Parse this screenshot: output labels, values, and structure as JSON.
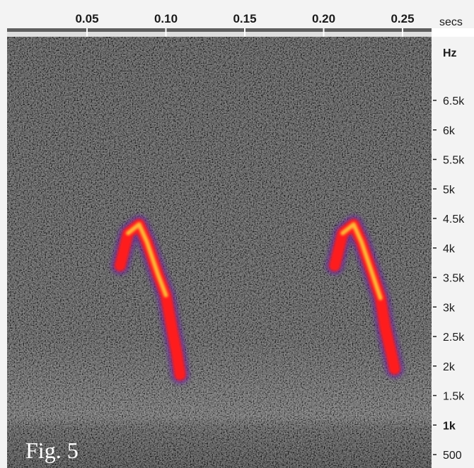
{
  "chart_data": {
    "type": "heatmap",
    "title": "",
    "figure_label": "Fig. 5",
    "x_axis": {
      "unit_label": "secs",
      "ticks": [
        {
          "value": 0.05,
          "label": "0.05"
        },
        {
          "value": 0.1,
          "label": "0.10"
        },
        {
          "value": 0.15,
          "label": "0.15"
        },
        {
          "value": 0.2,
          "label": "0.20"
        },
        {
          "value": 0.25,
          "label": "0.25"
        }
      ],
      "range": [
        0.0,
        0.265
      ]
    },
    "y_axis": {
      "unit_label": "Hz",
      "ticks": [
        {
          "value": 500,
          "label": "500"
        },
        {
          "value": 1000,
          "label": "1k"
        },
        {
          "value": 1500,
          "label": "1.5k"
        },
        {
          "value": 2000,
          "label": "2k"
        },
        {
          "value": 2500,
          "label": "2.5k"
        },
        {
          "value": 3000,
          "label": "3k"
        },
        {
          "value": 3500,
          "label": "3.5k"
        },
        {
          "value": 4000,
          "label": "4k"
        },
        {
          "value": 4500,
          "label": "4.5k"
        },
        {
          "value": 5000,
          "label": "5k"
        },
        {
          "value": 5500,
          "label": "5.5k"
        },
        {
          "value": 6000,
          "label": "6k"
        },
        {
          "value": 6500,
          "label": "6.5k"
        }
      ],
      "range": [
        300,
        7500
      ]
    },
    "calls": [
      {
        "name": "",
        "points": [
          {
            "t": 0.071,
            "f": 3700
          },
          {
            "t": 0.076,
            "f": 4250
          },
          {
            "t": 0.083,
            "f": 4400
          },
          {
            "t": 0.088,
            "f": 4100
          },
          {
            "t": 0.095,
            "f": 3550
          },
          {
            "t": 0.1,
            "f": 3200
          },
          {
            "t": 0.103,
            "f": 2750
          },
          {
            "t": 0.107,
            "f": 2200
          },
          {
            "t": 0.109,
            "f": 1850
          }
        ]
      },
      {
        "name": "",
        "points": [
          {
            "t": 0.207,
            "f": 3700
          },
          {
            "t": 0.212,
            "f": 4250
          },
          {
            "t": 0.219,
            "f": 4400
          },
          {
            "t": 0.224,
            "f": 4100
          },
          {
            "t": 0.231,
            "f": 3550
          },
          {
            "t": 0.236,
            "f": 3150
          },
          {
            "t": 0.239,
            "f": 2650
          },
          {
            "t": 0.243,
            "f": 2200
          },
          {
            "t": 0.245,
            "f": 1950
          }
        ]
      }
    ],
    "colors": {
      "background_noise": "#3c3c3c",
      "low_band": "#6e6e6e",
      "call_core": "#ffd23c",
      "call_mid": "#ff1a1a",
      "call_edge": "#6a2a9c"
    }
  }
}
